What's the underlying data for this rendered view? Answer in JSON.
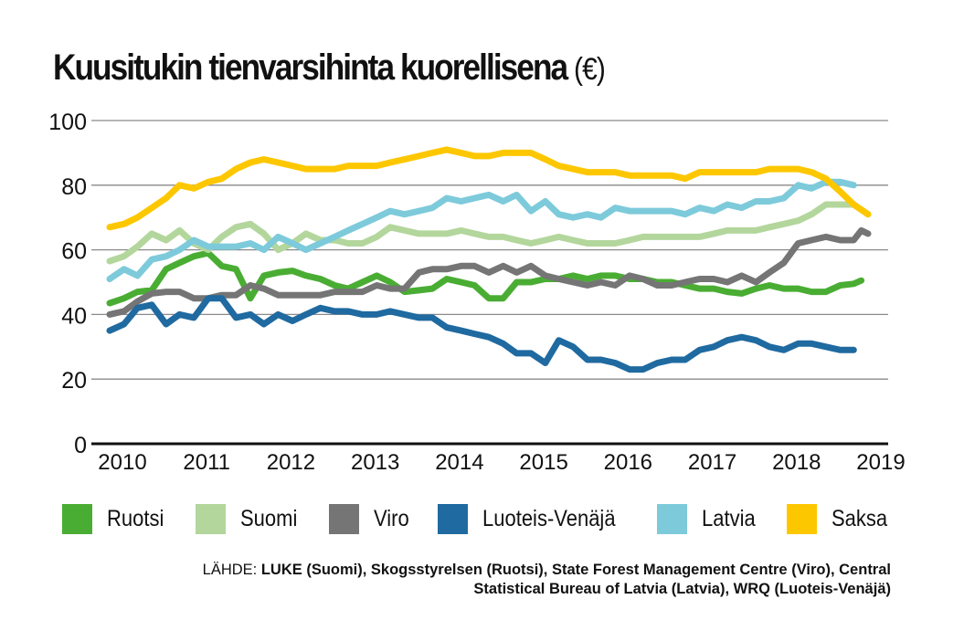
{
  "chart_data": {
    "type": "line",
    "title": "Kuusitukin tienvarsihinta kuorellisena",
    "title_unit": "(€)",
    "xlabel": "",
    "ylabel": "",
    "ylim": [
      0,
      100
    ],
    "xlim": [
      2010,
      2019
    ],
    "yticks": [
      0,
      20,
      40,
      60,
      80,
      100
    ],
    "xticks": [
      "2010",
      "2011",
      "2012",
      "2013",
      "2014",
      "2015",
      "2016",
      "2017",
      "2018",
      "2019"
    ],
    "grid": true,
    "legend_position": "bottom",
    "series": [
      {
        "name": "Ruotsi",
        "color": "#4aad33",
        "x": [
          2010.0,
          2010.17,
          2010.33,
          2010.5,
          2010.67,
          2010.83,
          2011.0,
          2011.17,
          2011.33,
          2011.5,
          2011.67,
          2011.83,
          2012.0,
          2012.17,
          2012.33,
          2012.5,
          2012.67,
          2012.83,
          2013.0,
          2013.17,
          2013.33,
          2013.5,
          2013.67,
          2013.83,
          2014.0,
          2014.17,
          2014.33,
          2014.5,
          2014.67,
          2014.83,
          2015.0,
          2015.17,
          2015.33,
          2015.5,
          2015.67,
          2015.83,
          2016.0,
          2016.17,
          2016.33,
          2016.5,
          2016.67,
          2016.83,
          2017.0,
          2017.17,
          2017.33,
          2017.5,
          2017.67,
          2017.83,
          2018.0,
          2018.17,
          2018.33,
          2018.5,
          2018.67,
          2018.83,
          2018.92
        ],
        "values": [
          43.5,
          45,
          47,
          47.5,
          54,
          56,
          58,
          59,
          55,
          54,
          45,
          52,
          53,
          53.5,
          52,
          51,
          49,
          48,
          50,
          52,
          50,
          47,
          47.5,
          48,
          51,
          50,
          49,
          45,
          45,
          50,
          50,
          51,
          51,
          52,
          51,
          52,
          52,
          51,
          51,
          50,
          50,
          49,
          48,
          48,
          47,
          46.5,
          48,
          49,
          48,
          48,
          47,
          47,
          49,
          49.5,
          50.5
        ]
      },
      {
        "name": "Suomi",
        "color": "#b3d69c",
        "x": [
          2010.0,
          2010.17,
          2010.33,
          2010.5,
          2010.67,
          2010.83,
          2011.0,
          2011.17,
          2011.33,
          2011.5,
          2011.67,
          2011.83,
          2012.0,
          2012.17,
          2012.33,
          2012.5,
          2012.67,
          2012.83,
          2013.0,
          2013.17,
          2013.33,
          2013.5,
          2013.67,
          2013.83,
          2014.0,
          2014.17,
          2014.33,
          2014.5,
          2014.67,
          2014.83,
          2015.0,
          2015.17,
          2015.33,
          2015.5,
          2015.67,
          2015.83,
          2016.0,
          2016.17,
          2016.33,
          2016.5,
          2016.67,
          2016.83,
          2017.0,
          2017.17,
          2017.33,
          2017.5,
          2017.67,
          2017.83,
          2018.0,
          2018.17,
          2018.33,
          2018.5,
          2018.67,
          2018.83,
          2019.0
        ],
        "values": [
          56.5,
          58,
          61,
          65,
          63,
          66,
          62,
          60,
          64,
          67,
          68,
          65,
          60,
          62,
          65,
          63,
          63,
          62,
          62,
          64,
          67,
          66,
          65,
          65,
          65,
          66,
          65,
          64,
          64,
          63,
          62,
          63,
          64,
          63,
          62,
          62,
          62,
          63,
          64,
          64,
          64,
          64,
          64,
          65,
          66,
          66,
          66,
          67,
          68,
          69,
          71,
          74,
          74,
          74,
          71
        ]
      },
      {
        "name": "Viro",
        "color": "#757575",
        "x": [
          2010.0,
          2010.17,
          2010.33,
          2010.5,
          2010.67,
          2010.83,
          2011.0,
          2011.17,
          2011.33,
          2011.5,
          2011.67,
          2011.83,
          2012.0,
          2012.17,
          2012.33,
          2012.5,
          2012.67,
          2012.83,
          2013.0,
          2013.17,
          2013.33,
          2013.5,
          2013.67,
          2013.83,
          2014.0,
          2014.17,
          2014.33,
          2014.5,
          2014.67,
          2014.83,
          2015.0,
          2015.17,
          2015.33,
          2015.5,
          2015.67,
          2015.83,
          2016.0,
          2016.17,
          2016.33,
          2016.5,
          2016.67,
          2016.83,
          2017.0,
          2017.17,
          2017.33,
          2017.5,
          2017.67,
          2017.83,
          2018.0,
          2018.17,
          2018.33,
          2018.5,
          2018.67,
          2018.83,
          2018.92,
          2019.0
        ],
        "values": [
          40,
          41,
          44,
          46.5,
          47,
          47,
          45,
          45,
          46,
          46,
          49,
          48,
          46,
          46,
          46,
          46,
          47,
          47,
          47,
          49,
          48,
          48,
          53,
          54,
          54,
          55,
          55,
          53,
          55,
          53,
          55,
          52,
          51,
          50,
          49,
          50,
          49,
          52,
          51,
          49,
          49,
          50,
          51,
          51,
          50,
          52,
          50,
          53,
          56,
          62,
          63,
          64,
          63,
          63,
          66,
          65
        ]
      },
      {
        "name": "Luoteis-Venäjä",
        "color": "#1f6aa0",
        "x": [
          2010.0,
          2010.17,
          2010.33,
          2010.5,
          2010.67,
          2010.83,
          2011.0,
          2011.17,
          2011.33,
          2011.5,
          2011.67,
          2011.83,
          2012.0,
          2012.17,
          2012.33,
          2012.5,
          2012.67,
          2012.83,
          2013.0,
          2013.17,
          2013.33,
          2013.5,
          2013.67,
          2013.83,
          2014.0,
          2014.17,
          2014.33,
          2014.5,
          2014.67,
          2014.83,
          2015.0,
          2015.17,
          2015.33,
          2015.5,
          2015.67,
          2015.83,
          2016.0,
          2016.17,
          2016.33,
          2016.5,
          2016.67,
          2016.83,
          2017.0,
          2017.17,
          2017.33,
          2017.5,
          2017.67,
          2017.83,
          2018.0,
          2018.17,
          2018.33,
          2018.5,
          2018.67,
          2018.83
        ],
        "values": [
          35,
          37,
          42,
          43,
          37,
          40,
          39,
          45,
          45,
          39,
          40,
          37,
          40,
          38,
          40,
          42,
          41,
          41,
          40,
          40,
          41,
          40,
          39,
          39,
          36,
          35,
          34,
          33,
          31,
          28,
          28,
          25,
          32,
          30,
          26,
          26,
          25,
          23,
          23,
          25,
          26,
          26,
          29,
          30,
          32,
          33,
          32,
          30,
          29,
          31,
          31,
          30,
          29,
          29
        ]
      },
      {
        "name": "Latvia",
        "color": "#7dcadb",
        "x": [
          2010.0,
          2010.17,
          2010.33,
          2010.5,
          2010.67,
          2010.83,
          2011.0,
          2011.17,
          2011.33,
          2011.5,
          2011.67,
          2011.83,
          2012.0,
          2012.17,
          2012.33,
          2012.5,
          2012.67,
          2012.83,
          2013.0,
          2013.17,
          2013.33,
          2013.5,
          2013.67,
          2013.83,
          2014.0,
          2014.17,
          2014.33,
          2014.5,
          2014.67,
          2014.83,
          2015.0,
          2015.17,
          2015.33,
          2015.5,
          2015.67,
          2015.83,
          2016.0,
          2016.17,
          2016.33,
          2016.5,
          2016.67,
          2016.83,
          2017.0,
          2017.17,
          2017.33,
          2017.5,
          2017.67,
          2017.83,
          2018.0,
          2018.17,
          2018.33,
          2018.5,
          2018.67,
          2018.83
        ],
        "values": [
          51,
          54,
          52,
          57,
          58,
          60,
          63,
          61,
          61,
          61,
          62,
          60,
          64,
          62,
          60,
          62,
          64,
          66,
          68,
          70,
          72,
          71,
          72,
          73,
          76,
          75,
          76,
          77,
          75,
          77,
          72,
          75,
          71,
          70,
          71,
          70,
          73,
          72,
          72,
          72,
          72,
          71,
          73,
          72,
          74,
          73,
          75,
          75,
          76,
          80,
          79,
          81,
          81,
          80
        ]
      },
      {
        "name": "Saksa",
        "color": "#fdc700",
        "x": [
          2010.0,
          2010.17,
          2010.33,
          2010.5,
          2010.67,
          2010.83,
          2011.0,
          2011.17,
          2011.33,
          2011.5,
          2011.67,
          2011.83,
          2012.0,
          2012.17,
          2012.33,
          2012.5,
          2012.67,
          2012.83,
          2013.0,
          2013.17,
          2013.33,
          2013.5,
          2013.67,
          2013.83,
          2014.0,
          2014.17,
          2014.33,
          2014.5,
          2014.67,
          2014.83,
          2015.0,
          2015.17,
          2015.33,
          2015.5,
          2015.67,
          2015.83,
          2016.0,
          2016.17,
          2016.33,
          2016.5,
          2016.67,
          2016.83,
          2017.0,
          2017.17,
          2017.33,
          2017.5,
          2017.67,
          2017.83,
          2018.0,
          2018.17,
          2018.33,
          2018.5,
          2018.67,
          2018.83,
          2019.0
        ],
        "values": [
          67,
          68,
          70,
          73,
          76,
          80,
          79,
          81,
          82,
          85,
          87,
          88,
          87,
          86,
          85,
          85,
          85,
          86,
          86,
          86,
          87,
          88,
          89,
          90,
          91,
          90,
          89,
          89,
          90,
          90,
          90,
          88,
          86,
          85,
          84,
          84,
          84,
          83,
          83,
          83,
          83,
          82,
          84,
          84,
          84,
          84,
          84,
          85,
          85,
          85,
          84,
          82,
          78,
          74,
          71
        ]
      }
    ]
  },
  "title": {
    "main": "Kuusitukin tienvarsihinta kuorellisena",
    "unit": "(€)"
  },
  "legend": [
    {
      "label": "Ruotsi",
      "color": "#4aad33"
    },
    {
      "label": "Suomi",
      "color": "#b3d69c"
    },
    {
      "label": "Viro",
      "color": "#757575"
    },
    {
      "label": "Luoteis-Venäjä",
      "color": "#1f6aa0"
    },
    {
      "label": "Latvia",
      "color": "#7dcadb"
    },
    {
      "label": "Saksa",
      "color": "#fdc700"
    }
  ],
  "source": {
    "label": "LÄHDE:",
    "text": "LUKE (Suomi), Skogsstyrelsen (Ruotsi), State Forest Management Centre (Viro), Central Statistical Bureau of Latvia (Latvia), WRQ (Luoteis-Venäjä)"
  }
}
